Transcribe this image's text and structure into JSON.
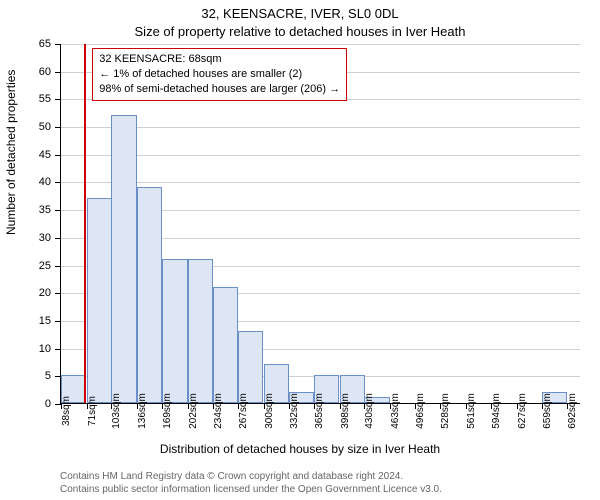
{
  "header": {
    "address": "32, KEENSACRE, IVER, SL0 0DL",
    "subtitle": "Size of property relative to detached houses in Iver Heath"
  },
  "chart": {
    "type": "histogram",
    "ylabel": "Number of detached properties",
    "xlabel": "Distribution of detached houses by size in Iver Heath",
    "ylim": [
      0,
      65
    ],
    "ytick_step": 5,
    "yticks": [
      0,
      5,
      10,
      15,
      20,
      25,
      30,
      35,
      40,
      45,
      50,
      55,
      60,
      65
    ],
    "x_min": 38,
    "x_max": 710,
    "xticks": [
      38,
      71,
      103,
      136,
      169,
      202,
      234,
      267,
      300,
      332,
      365,
      398,
      430,
      463,
      496,
      528,
      561,
      594,
      627,
      659,
      692
    ],
    "xtick_unit": "sqm",
    "bin_width_sqm": 32.7,
    "bars_values": [
      5,
      37,
      52,
      39,
      26,
      26,
      21,
      13,
      7,
      2,
      5,
      5,
      1,
      0,
      0,
      0,
      0,
      0,
      0,
      2
    ],
    "bar_fill": "#dce6f5",
    "bar_stroke": "#6b8fc9",
    "grid_color": "#d0d0d0",
    "background_color": "#ffffff",
    "vline_value": 68,
    "vline_color": "#cc0000",
    "annotation": {
      "line1": "32 KEENSACRE: 68sqm",
      "line2": "← 1% of detached houses are smaller (2)",
      "line3": "98% of semi-detached houses are larger (206) →",
      "border_color": "#cc0000",
      "text_color": "#000000",
      "fontsize": 11
    }
  },
  "footer": {
    "line1": "Contains HM Land Registry data © Crown copyright and database right 2024.",
    "line2": "Contains public sector information licensed under the Open Government Licence v3.0."
  }
}
